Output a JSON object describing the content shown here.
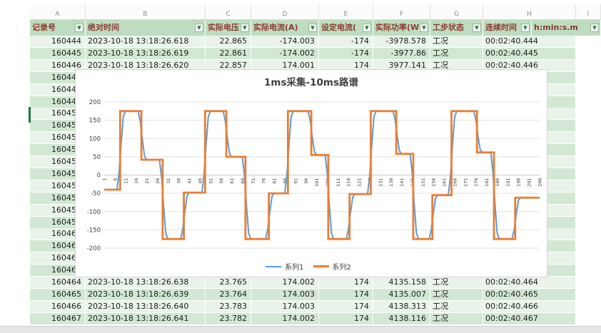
{
  "sheet": {
    "column_letters": [
      "A",
      "B",
      "C",
      "D",
      "E",
      "F",
      "G",
      "H",
      "I"
    ],
    "headers": [
      "记录号",
      "绝对时间",
      "实际电压",
      "实际电流(A)",
      "设定电流(",
      "实际功率(W",
      "工步状态",
      "连续时间",
      "h:min:s.m"
    ],
    "rows_top": [
      {
        "record": "160444",
        "abs_time": "2023-10-18 13:18:26.618",
        "voltage": "22.865",
        "current": "-174.003",
        "set_current": "-174",
        "power": "-3978.578",
        "status": "工况",
        "duration": "00:02:40.444"
      },
      {
        "record": "160445",
        "abs_time": "2023-10-18 13:18:26.619",
        "voltage": "22.861",
        "current": "-174.002",
        "set_current": "-174",
        "power": "-3977.86",
        "status": "工况",
        "duration": "00:02:40.445"
      },
      {
        "record": "160446",
        "abs_time": "2023-10-18 13:18:26.620",
        "voltage": "22.857",
        "current": "174.001",
        "set_current": "174",
        "power": "3977.141",
        "status": "工况",
        "duration": "00:02:40.446"
      }
    ],
    "rows_hidden_records": [
      "160447",
      "160448",
      "160449",
      "160450",
      "160451",
      "160452",
      "160453",
      "160454",
      "160455",
      "160456",
      "160457",
      "160458",
      "160459",
      "160460",
      "160461",
      "160462",
      "160463"
    ],
    "rows_bottom": [
      {
        "record": "160464",
        "abs_time": "2023-10-18 13:18:26.638",
        "voltage": "23.765",
        "current": "174.002",
        "set_current": "174",
        "power": "4135.158",
        "status": "工况",
        "duration": "00:02:40.464"
      },
      {
        "record": "160465",
        "abs_time": "2023-10-18 13:18:26.639",
        "voltage": "23.764",
        "current": "174.003",
        "set_current": "174",
        "power": "4135.007",
        "status": "工况",
        "duration": "00:02:40.465"
      },
      {
        "record": "160466",
        "abs_time": "2023-10-18 13:18:26.640",
        "voltage": "23.783",
        "current": "174.003",
        "set_current": "174",
        "power": "4138.313",
        "status": "工况",
        "duration": "00:02:40.466"
      },
      {
        "record": "160467",
        "abs_time": "2023-10-18 13:18:26.641",
        "voltage": "23.782",
        "current": "174.002",
        "set_current": "174",
        "power": "4138.116",
        "status": "工况",
        "duration": "00:02:40.467"
      }
    ]
  },
  "chart_data": {
    "type": "line",
    "title": "1ms采集-10ms路谱",
    "xlabel": "",
    "ylabel": "",
    "x_min": 1,
    "x_max": 206,
    "x_tick_step": 5,
    "ylim": [
      -200,
      200
    ],
    "y_tick_step": 50,
    "grid": true,
    "legend_position": "bottom",
    "legend": [
      "系列1",
      "系列2"
    ],
    "series": [
      {
        "name": "系列1",
        "color": "#5b9bd5",
        "style": "ramp"
      },
      {
        "name": "系列2",
        "color": "#ed7d31",
        "style": "step"
      }
    ],
    "step_segments": [
      [
        1,
        8,
        -40
      ],
      [
        9,
        18,
        175
      ],
      [
        19,
        28,
        42
      ],
      [
        29,
        38,
        -175
      ],
      [
        39,
        48,
        -48
      ],
      [
        49,
        58,
        175
      ],
      [
        59,
        67,
        50
      ],
      [
        68,
        78,
        -175
      ],
      [
        79,
        87,
        -50
      ],
      [
        88,
        98,
        175
      ],
      [
        99,
        106,
        55
      ],
      [
        107,
        116,
        -175
      ],
      [
        117,
        126,
        -52
      ],
      [
        127,
        138,
        175
      ],
      [
        139,
        146,
        58
      ],
      [
        147,
        155,
        -175
      ],
      [
        156,
        164,
        -55
      ],
      [
        165,
        176,
        175
      ],
      [
        177,
        184,
        62
      ],
      [
        185,
        194,
        -175
      ],
      [
        195,
        206,
        -62
      ]
    ]
  },
  "colors": {
    "header_fill": "#bedcc0",
    "header_text": "#8b3a2e",
    "row_fill_light": "#e9f3e9",
    "row_fill_dark": "#d3e8d4",
    "gridline": "#e2e2e2",
    "axis_text": "#404040",
    "series1": "#5b9bd5",
    "series2": "#ed7d31",
    "selection_green": "#21734a"
  }
}
